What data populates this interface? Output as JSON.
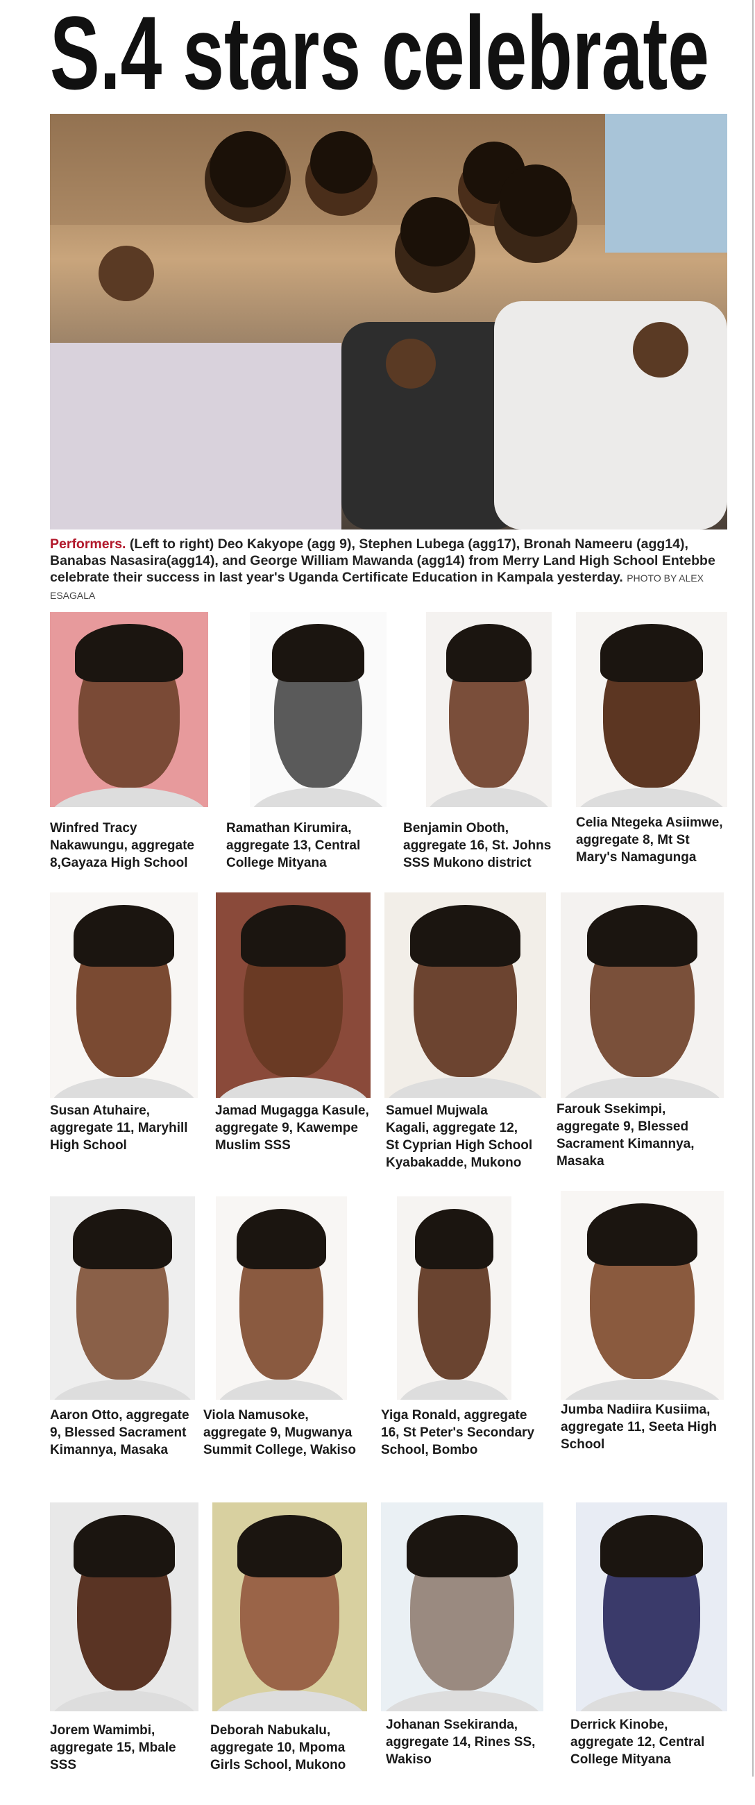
{
  "headline": "S.4 stars celebrate",
  "photo_caption": {
    "lead": "Performers.",
    "text": "(Left to right) Deo Kakyope (agg 9), Stephen Lubega (agg17), Bronah Nameeru (agg14), Banabas Nasasira(agg14), and George William Mawanda (agg14) from  Merry Land High School Entebbe celebrate their success in last year's Uganda Certificate Education in Kampala yesterday.",
    "credit": "PHOTO BY ALEX ESAGALA"
  },
  "portraits": [
    {
      "caption": [
        "Winfred Tracy",
        "Nakawungu, aggregate",
        "8,Gayaza High School"
      ]
    },
    {
      "caption": [
        "Ramathan Kirumira,",
        "aggregate 13, Central",
        "College Mityana"
      ]
    },
    {
      "caption": [
        "Benjamin Oboth,",
        "aggregate 16, St. Johns",
        "SSS Mukono district"
      ]
    },
    {
      "caption": [
        "Celia Ntegeka Asiimwe,",
        "aggregate 8, Mt St",
        "Mary's Namagunga"
      ]
    },
    {
      "caption": [
        "Susan Atuhaire,",
        "aggregate 11, Maryhill",
        "High School"
      ]
    },
    {
      "caption": [
        "Jamad Mugagga Kasule,",
        "aggregate 9, Kawempe",
        "Muslim SSS"
      ]
    },
    {
      "caption": [
        "Samuel Mujwala",
        "Kagali, aggregate 12,",
        "St Cyprian High School",
        "Kyabakadde, Mukono"
      ]
    },
    {
      "caption": [
        "Farouk Ssekimpi,",
        "aggregate 9, Blessed",
        "Sacrament Kimannya,",
        "Masaka"
      ]
    },
    {
      "caption": [
        "Aaron Otto, aggregate",
        "9, Blessed Sacrament",
        "Kimannya, Masaka"
      ]
    },
    {
      "caption": [
        "Viola Namusoke,",
        "aggregate 9, Mugwanya",
        "Summit College, Wakiso"
      ]
    },
    {
      "caption": [
        "Yiga Ronald, aggregate",
        "16, St Peter's Secondary",
        "School, Bombo"
      ]
    },
    {
      "caption": [
        "Jumba Nadiira Kusiima,",
        "aggregate 11, Seeta High",
        "School"
      ]
    },
    {
      "caption": [
        "Jorem Wamimbi,",
        "aggregate 15, Mbale",
        "SSS"
      ]
    },
    {
      "caption": [
        "Deborah Nabukalu,",
        "aggregate 10, Mpoma",
        "Girls School, Mukono"
      ]
    },
    {
      "caption": [
        "Johanan Ssekiranda,",
        "aggregate 14, Rines SS,",
        "Wakiso"
      ]
    },
    {
      "caption": [
        "Derrick Kinobe,",
        "aggregate 12, Central",
        "College Mityana"
      ]
    }
  ]
}
